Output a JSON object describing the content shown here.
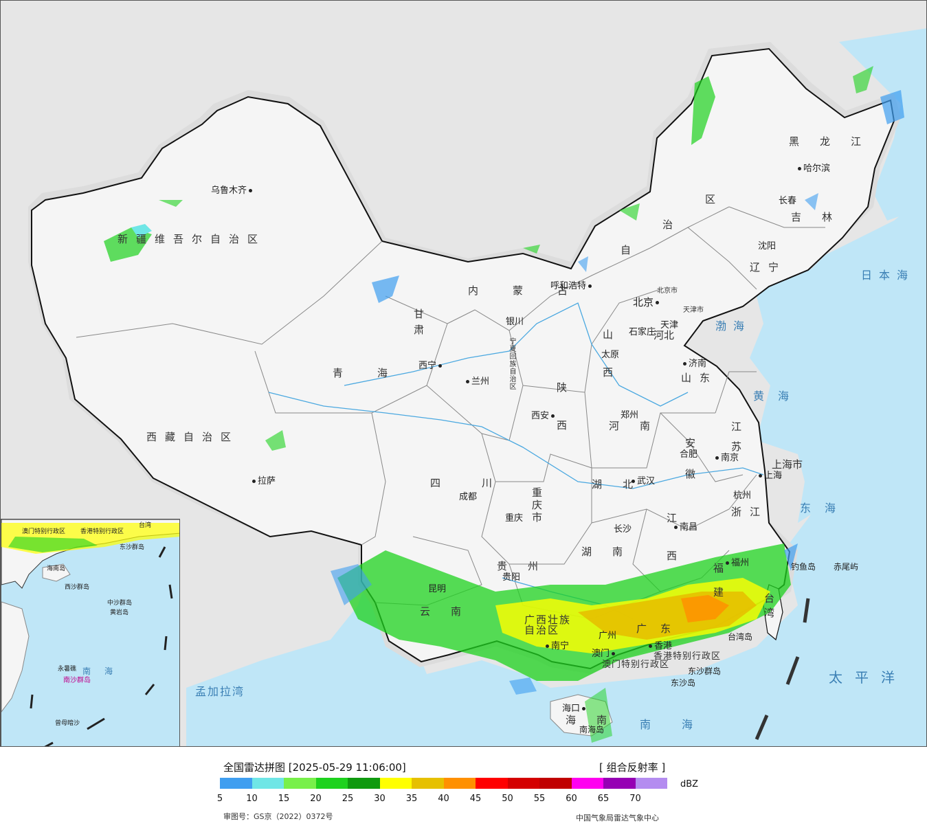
{
  "map": {
    "cities": [
      {
        "name": "乌鲁木齐",
        "dot": "after"
      },
      {
        "name": "拉萨",
        "dot": "before"
      },
      {
        "name": "西宁",
        "dot": "after"
      },
      {
        "name": "兰州",
        "dot": "before"
      },
      {
        "name": "银川",
        "dot": "before"
      },
      {
        "name": "呼和浩特",
        "dot": "after"
      },
      {
        "name": "北京",
        "dot": "after"
      },
      {
        "name": "天津",
        "dot": "before"
      },
      {
        "name": "石家庄",
        "dot": "after"
      },
      {
        "name": "太原",
        "dot": "before"
      },
      {
        "name": "济南",
        "dot": "before"
      },
      {
        "name": "沈阳",
        "dot": "before"
      },
      {
        "name": "长春",
        "dot": "before"
      },
      {
        "name": "哈尔滨",
        "dot": "before"
      },
      {
        "name": "郑州",
        "dot": "before"
      },
      {
        "name": "西安",
        "dot": "after"
      },
      {
        "name": "成都",
        "dot": "before"
      },
      {
        "name": "重庆",
        "dot": "before"
      },
      {
        "name": "武汉",
        "dot": "before"
      },
      {
        "name": "合肥",
        "dot": "before"
      },
      {
        "name": "南京",
        "dot": "before"
      },
      {
        "name": "上海",
        "dot": "before"
      },
      {
        "name": "杭州",
        "dot": "before"
      },
      {
        "name": "长沙",
        "dot": "before"
      },
      {
        "name": "南昌",
        "dot": "before"
      },
      {
        "name": "福州",
        "dot": "before"
      },
      {
        "name": "贵阳",
        "dot": "before"
      },
      {
        "name": "昆明",
        "dot": "before"
      },
      {
        "name": "南宁",
        "dot": "before"
      },
      {
        "name": "广州",
        "dot": "before"
      },
      {
        "name": "香港",
        "dot": "before"
      },
      {
        "name": "澳门",
        "dot": "before"
      },
      {
        "name": "海口",
        "dot": "before"
      },
      {
        "name": "台湾岛",
        "dot": "none"
      },
      {
        "name": "东沙群岛",
        "dot": "none"
      },
      {
        "name": "东沙岛",
        "dot": "none"
      },
      {
        "name": "南海岛",
        "dot": "none"
      },
      {
        "name": "钓鱼岛",
        "dot": "none"
      },
      {
        "name": "赤尾屿",
        "dot": "none"
      }
    ],
    "provinces": [
      "新疆维吾尔自治区",
      "西藏自治区",
      "青海",
      "甘肃",
      "内蒙古",
      "宁夏回族自治区",
      "陕西",
      "山西",
      "河北",
      "北京市",
      "天津市",
      "山东",
      "河南",
      "四川",
      "重庆市",
      "湖北",
      "湖南",
      "贵州",
      "云南",
      "广西壮族自治区",
      "广东",
      "江西",
      "福建",
      "浙江",
      "安徽",
      "江苏",
      "上海市",
      "辽宁",
      "吉林",
      "黑龙江",
      "海南",
      "台湾",
      "香港特别行政区",
      "澳门特别行政区",
      "区",
      "治",
      "自"
    ],
    "seas": [
      "日本海",
      "渤海",
      "黄海",
      "东海",
      "太平洋",
      "南海",
      "孟加拉湾"
    ],
    "inset_labels": [
      "南海",
      "中沙群岛",
      "黄岩岛",
      "永暑礁",
      "南沙群岛",
      "曾母暗沙",
      "西沙群岛",
      "香港特别行政区",
      "澳门特别行政区",
      "台湾",
      "海南岛",
      "东沙群岛"
    ]
  },
  "legend": {
    "title": "全国雷达拼图 [2025-05-29 11:06:00]",
    "product": "[ 组合反射率 ]",
    "unit": "dBZ",
    "ticks": [
      "5",
      "10",
      "15",
      "20",
      "25",
      "30",
      "35",
      "40",
      "45",
      "50",
      "55",
      "60",
      "65",
      "70"
    ],
    "colors": [
      "#3f9ef0",
      "#6fe6e6",
      "#78f04a",
      "#1ed21e",
      "#0f9a0f",
      "#ffff00",
      "#e6c000",
      "#ff9000",
      "#ff0000",
      "#d40000",
      "#c00000",
      "#ff00f0",
      "#9600b4",
      "#b48cf0"
    ],
    "approval": "审图号：GS京（2022）0372号",
    "source": "中国气象局雷达气象中心"
  }
}
